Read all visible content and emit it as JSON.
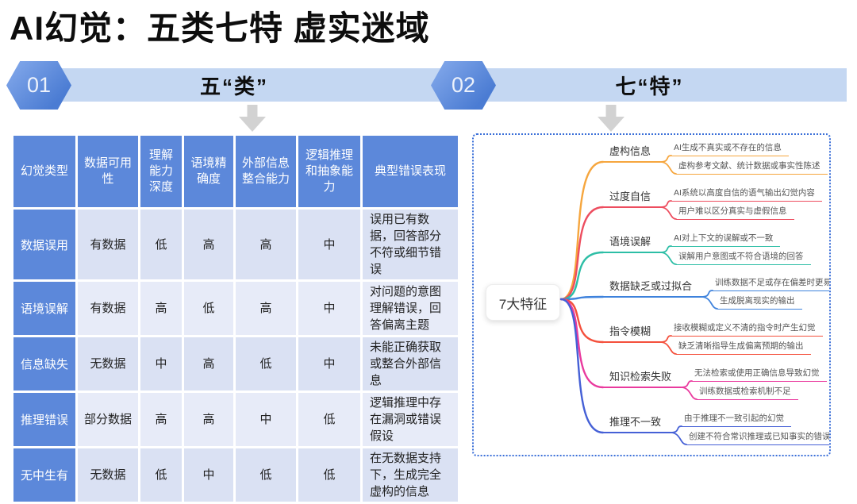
{
  "title": "AI幻觉：五类七特 虚实迷域",
  "sections": [
    {
      "number": "01",
      "label": "五“类”"
    },
    {
      "number": "02",
      "label": "七“特”"
    }
  ],
  "table": {
    "headers": [
      "幻觉类型",
      "数据可用性",
      "理解能力深度",
      "语境精确度",
      "外部信息整合能力",
      "逻辑推理和抽象能力",
      "典型错误表现"
    ],
    "rows": [
      {
        "type": "数据误用",
        "cells": [
          "有数据",
          "低",
          "高",
          "高",
          "中",
          "误用已有数据，回答部分不符或细节错误"
        ]
      },
      {
        "type": "语境误解",
        "cells": [
          "有数据",
          "高",
          "低",
          "高",
          "中",
          "对问题的意图理解错误，回答偏离主题"
        ]
      },
      {
        "type": "信息缺失",
        "cells": [
          "无数据",
          "中",
          "高",
          "低",
          "中",
          "未能正确获取或整合外部信息"
        ]
      },
      {
        "type": "推理错误",
        "cells": [
          "部分数据",
          "高",
          "高",
          "中",
          "低",
          "逻辑推理中存在漏洞或错误假设"
        ]
      },
      {
        "type": "无中生有",
        "cells": [
          "无数据",
          "低",
          "中",
          "低",
          "低",
          "在无数据支持下，生成完全虚构的信息"
        ]
      }
    ]
  },
  "mindmap": {
    "root": "7大特征",
    "topics": [
      {
        "label": "虚构信息",
        "color": "#F6A63E",
        "leaves": [
          "AI生成不真实或不存在的信息",
          "虚构参考文献、统计数据或事实性陈述"
        ]
      },
      {
        "label": "过度自信",
        "color": "#ED4D5F",
        "leaves": [
          "AI系统以高度自信的语气输出幻觉内容",
          "用户难以区分真实与虚假信息"
        ]
      },
      {
        "label": "语境误解",
        "color": "#2DBEA6",
        "leaves": [
          "AI对上下文的误解或不一致",
          "误解用户意图或不符合语境的回答"
        ]
      },
      {
        "label": "数据缺乏或过拟合",
        "color": "#3E82DC",
        "leaves": [
          "训练数据不足或存在偏差时更易发生幻觉",
          "生成脱离现实的输出"
        ]
      },
      {
        "label": "指令模糊",
        "color": "#F4503C",
        "leaves": [
          "接收模糊或定义不清的指令时产生幻觉",
          "缺乏清晰指导生成偏离预期的输出"
        ]
      },
      {
        "label": "知识检索失败",
        "color": "#E93A9E",
        "leaves": [
          "无法检索或使用正确信息导致幻觉",
          "训练数据或检索机制不足"
        ]
      },
      {
        "label": "推理不一致",
        "color": "#4560D6",
        "leaves": [
          "由于推理不一致引起的幻觉",
          "创建不符合常识推理或已知事实的错误叙述"
        ]
      }
    ]
  },
  "colors": {
    "table_blue": "#5C88DA",
    "cell_light": "#DAE1F3",
    "cell_lighter": "#E7EBF8",
    "section_bar": "#C4D7F2",
    "hex_badge": "#4B7CD3",
    "mindmap_border": "#3A6FD8",
    "arrow_gray": "#D2D2D2"
  }
}
